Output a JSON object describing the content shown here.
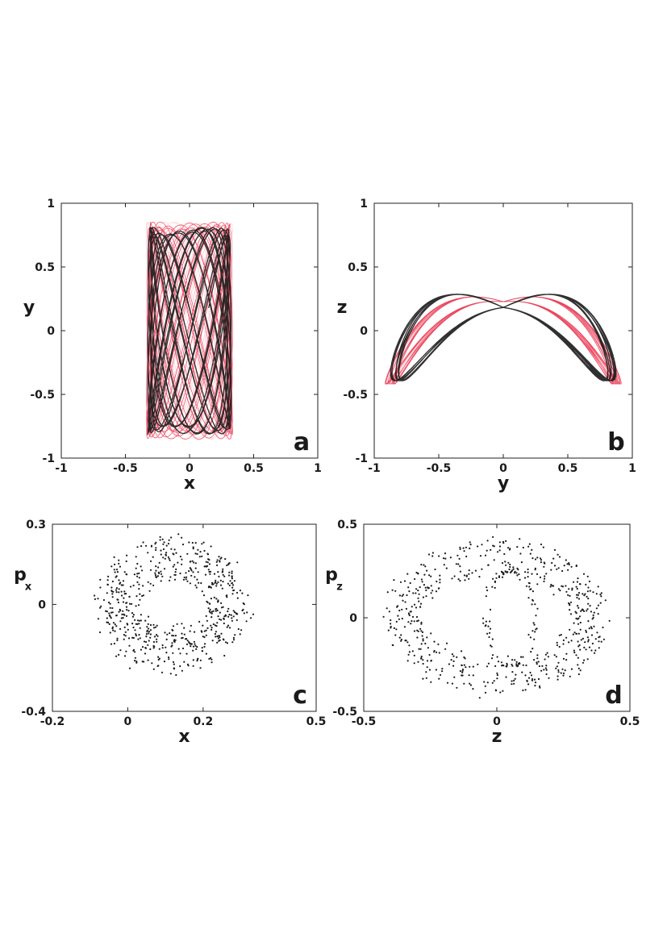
{
  "colors": {
    "trajectory_dense": "#e8304a",
    "trajectory_dense_light": "#f3a4b0",
    "trajectory_dark": "#1a1a1a",
    "points": "#1a1a1a"
  },
  "chart_data": [
    {
      "id": "a",
      "type": "line",
      "panel_label": "a",
      "xlabel": "x",
      "ylabel": "y",
      "ylabel_sub": "",
      "xlim": [
        -1,
        1
      ],
      "ylim": [
        -1,
        1
      ],
      "xticks": [
        "-1",
        "-0.5",
        "0",
        "0.5",
        "1"
      ],
      "xtick_values": [
        -1,
        -0.5,
        0,
        0.5,
        1
      ],
      "yticks": [
        "1",
        "0.5",
        "0",
        "-0.5",
        "-1"
      ],
      "ytick_values": [
        1,
        0.5,
        0,
        -0.5,
        -1
      ],
      "series": [
        {
          "style": "red-dense",
          "x_amplitude": 0.32,
          "y_amplitude": 0.82,
          "frequency_ratio": "irrational (quasi-periodic)"
        },
        {
          "style": "black",
          "x_amplitude": 0.31,
          "y_amplitude": 0.78,
          "frequency_ratio": "irrational (quasi-periodic)"
        }
      ]
    },
    {
      "id": "b",
      "type": "line",
      "panel_label": "b",
      "xlabel": "y",
      "ylabel": "z",
      "ylabel_sub": "",
      "xlim": [
        -1,
        1
      ],
      "ylim": [
        -1,
        1
      ],
      "xticks": [
        "-1",
        "-0.5",
        "0",
        "0.5",
        "1"
      ],
      "xtick_values": [
        -1,
        -0.5,
        0,
        0.5,
        1
      ],
      "yticks": [
        "1",
        "0.5",
        "0",
        "-0.5",
        "-1"
      ],
      "ytick_values": [
        1,
        0.5,
        0,
        -0.5,
        -1
      ],
      "series": [
        {
          "style": "red-dense",
          "x_amplitude": 0.88,
          "y_amplitude": 0.42,
          "frequency_ratio": "irrational (quasi-periodic)"
        },
        {
          "style": "black",
          "x_amplitude": 0.84,
          "y_amplitude": 0.4,
          "frequency_ratio": "irrational (quasi-periodic)"
        }
      ]
    },
    {
      "id": "c",
      "type": "scatter",
      "panel_label": "c",
      "xlabel": "x",
      "ylabel": "p",
      "ylabel_sub": "x",
      "xlim": [
        -0.2,
        0.5
      ],
      "ylim": [
        -0.4,
        0.3
      ],
      "xticks": [
        "-0.2",
        "0",
        "0.2",
        "0.5"
      ],
      "xtick_values": [
        -0.2,
        0,
        0.2,
        0.5
      ],
      "yticks": [
        "0.3",
        "0",
        "-0.4"
      ],
      "ytick_values": [
        0.3,
        0,
        -0.4
      ],
      "ring": {
        "center": [
          0.12,
          0.0
        ],
        "radius_x": [
          0.1,
          0.2
        ],
        "radius_y": [
          0.09,
          0.26
        ],
        "n_points": 620
      }
    },
    {
      "id": "d",
      "type": "scatter",
      "panel_label": "d",
      "xlabel": "z",
      "ylabel": "p",
      "ylabel_sub": "z",
      "xlim": [
        -0.5,
        0.5
      ],
      "ylim": [
        -0.5,
        0.5
      ],
      "xticks": [
        "-0.5",
        "0",
        "0.5"
      ],
      "xtick_values": [
        -0.5,
        0,
        0.5
      ],
      "yticks": [
        "0.5",
        "0",
        "-0.5"
      ],
      "ytick_values": [
        0.5,
        0,
        -0.5
      ],
      "ring": {
        "center": [
          0.0,
          0.0
        ],
        "radius_x": [
          0.28,
          0.42
        ],
        "radius_y": [
          0.22,
          0.42
        ],
        "n_points": 560
      },
      "inner_loop": {
        "center": [
          0.05,
          0.0
        ],
        "radius_x": 0.09,
        "radius_y": 0.26,
        "n_points": 90
      }
    }
  ]
}
